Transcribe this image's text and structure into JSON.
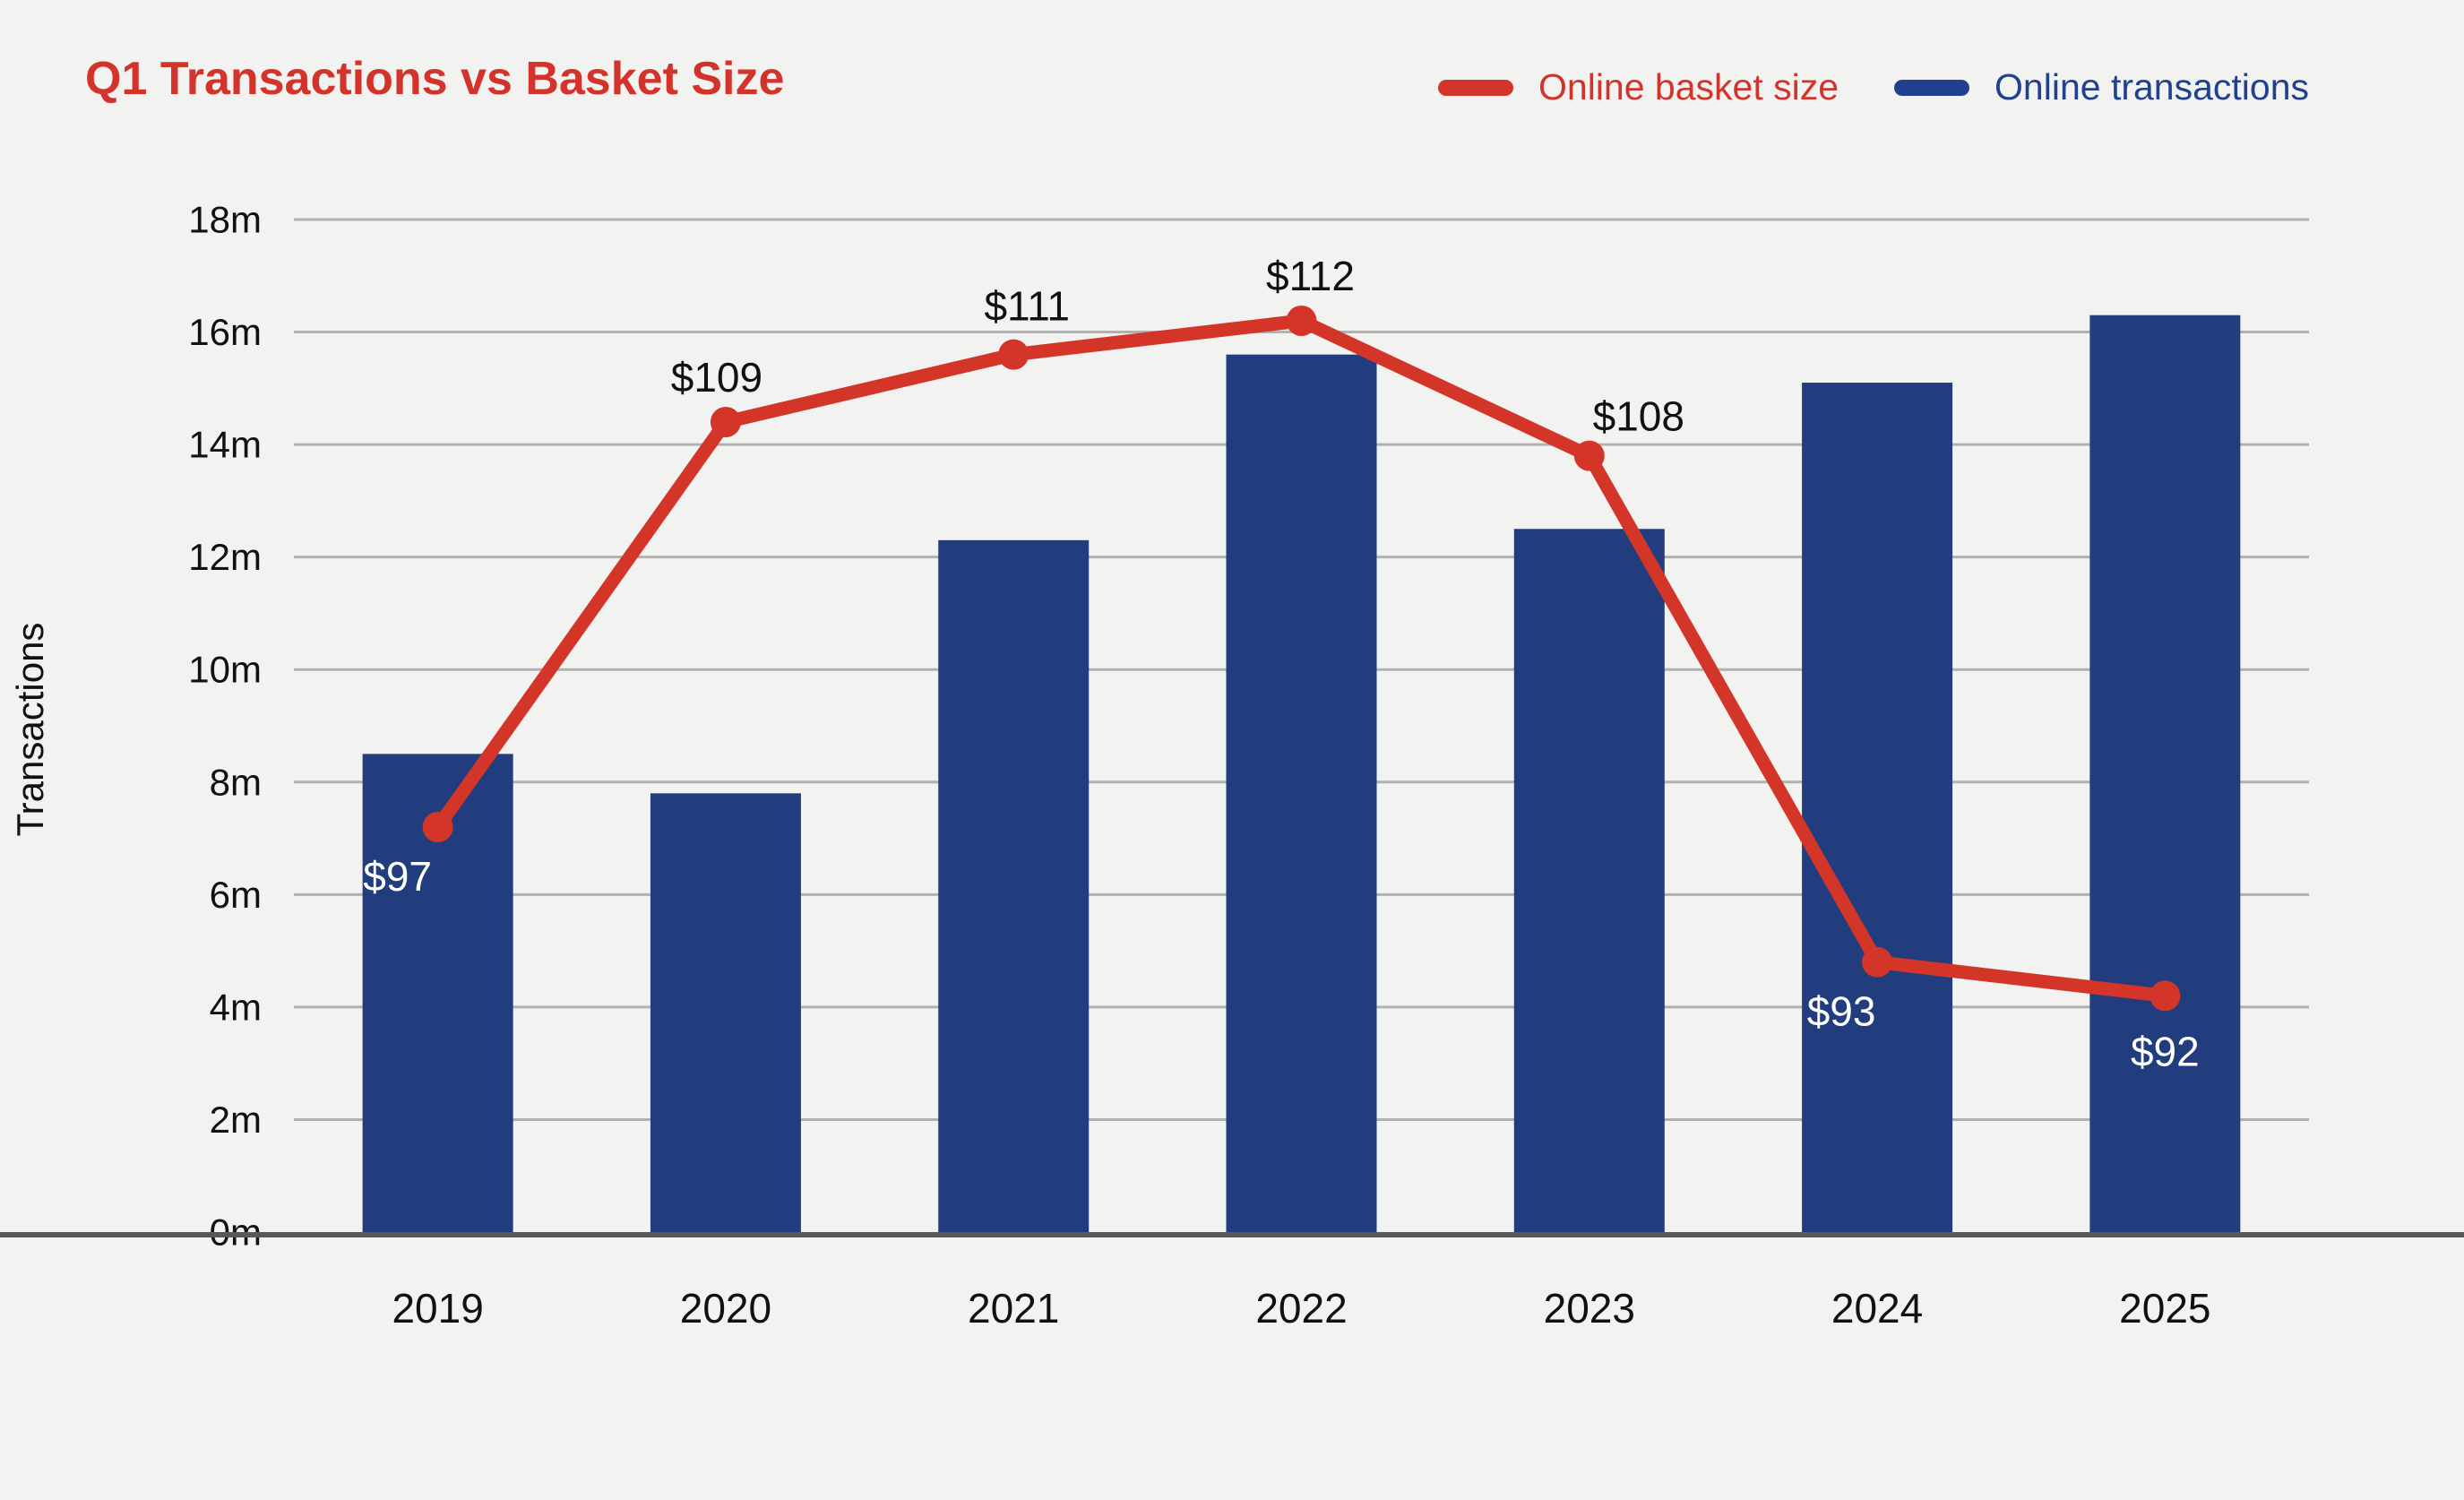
{
  "header": {
    "title": "Q1 Transactions vs Basket Size"
  },
  "legend": {
    "items": [
      {
        "label": "Online basket size",
        "color": "#d2342b",
        "swatch": "red-line-swatch"
      },
      {
        "label": "Online transactions",
        "color": "#21418f",
        "swatch": "blue-bar-swatch"
      }
    ]
  },
  "axes": {
    "y_label": "Transactions",
    "y_ticks": [
      "0m",
      "2m",
      "4m",
      "6m",
      "8m",
      "10m",
      "12m",
      "14m",
      "16m",
      "18m"
    ],
    "x_ticks": [
      "2019",
      "2020",
      "2021",
      "2022",
      "2023",
      "2024",
      "2025"
    ]
  },
  "chart_data": {
    "type": "bar",
    "title": "Q1 Transactions vs Basket Size",
    "categories": [
      "2019",
      "2020",
      "2021",
      "2022",
      "2023",
      "2024",
      "2025"
    ],
    "series": [
      {
        "name": "Online transactions",
        "type": "bar",
        "unit": "millions of transactions",
        "values": [
          8.5,
          7.8,
          12.3,
          15.6,
          12.5,
          15.1,
          16.3
        ]
      },
      {
        "name": "Online basket size",
        "type": "line",
        "unit": "USD",
        "values": [
          97,
          109,
          111,
          112,
          108,
          93,
          92
        ],
        "point_labels": [
          {
            "text": "$97",
            "dx": -45,
            "dy": 55,
            "color": "#ffffff"
          },
          {
            "text": "$109",
            "dx": -10,
            "dy": -50,
            "color": "#111111"
          },
          {
            "text": "$111",
            "dx": 15,
            "dy": -54,
            "color": "#111111"
          },
          {
            "text": "$112",
            "dx": 10,
            "dy": -50,
            "color": "#111111"
          },
          {
            "text": "$108",
            "dx": 55,
            "dy": -44,
            "color": "#111111"
          },
          {
            "text": "$93",
            "dx": -40,
            "dy": 55,
            "color": "#ffffff"
          },
          {
            "text": "$92",
            "dx": 0,
            "dy": 62,
            "color": "#ffffff"
          }
        ]
      }
    ],
    "xlabel": "",
    "ylabel": "Transactions",
    "ylim": [
      0,
      18
    ],
    "y_tick_step": 2,
    "y_tick_suffix": "m",
    "secondary_ylim_hidden": [
      85,
      115
    ],
    "grid": true,
    "legend_position": "top-right"
  },
  "colors": {
    "background": "#f2f2f1",
    "bar_blue": "#213d7e",
    "legend_blue": "#21418f",
    "accent_red": "#d2342b",
    "line_red": "#d43529",
    "gridline": "#b1b1b1",
    "baseline": "#58585a",
    "text": "#111111",
    "label_on_bar": "#ffffff"
  }
}
